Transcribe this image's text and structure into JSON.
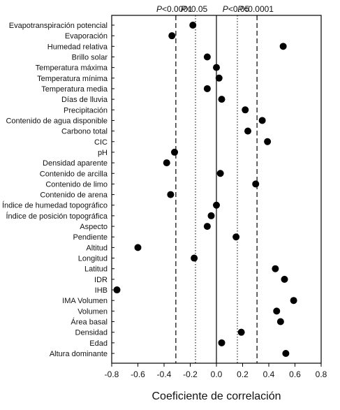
{
  "chart_data": {
    "type": "scatter",
    "orientation": "horizontal-dot",
    "xlabel": "Coeficiente de correlación",
    "ylabel": "",
    "xlim": [
      -0.8,
      0.8
    ],
    "xticks": [
      "-0.8",
      "-0.6",
      "-0.4",
      "-0.2",
      "0.0",
      "0.2",
      "0.4",
      "0.6",
      "0.8"
    ],
    "categories": [
      "Evapotranspiración potencial",
      "Evaporación",
      "Humedad relativa",
      "Brillo solar",
      "Temperatura máxima",
      "Temperatura mínima",
      "Temperatura media",
      "Días de lluvia",
      "Precipitación",
      "Contenido de agua disponible",
      "Carbono total",
      "CIC",
      "pH",
      "Densidad aparente",
      "Contenido de arcilla",
      "Contenido de limo",
      "Contenido de arena",
      "Índice de humedad topográfico",
      "Índice de posición topográfica",
      "Aspecto",
      "Pendiente",
      "Altitud",
      "Longitud",
      "Latitud",
      "IDR",
      "IHB",
      "IMA Volumen",
      "Volumen",
      "Área basal",
      "Densidad",
      "Edad",
      "Altura dominante"
    ],
    "values": [
      -0.18,
      -0.34,
      0.51,
      -0.07,
      0.0,
      0.02,
      -0.07,
      0.04,
      0.22,
      0.35,
      0.24,
      0.39,
      -0.32,
      -0.38,
      0.03,
      0.3,
      -0.35,
      0.0,
      -0.04,
      -0.07,
      0.15,
      -0.6,
      -0.17,
      0.45,
      0.52,
      -0.76,
      0.59,
      0.46,
      0.49,
      0.19,
      0.04,
      0.53
    ],
    "reference_lines": [
      {
        "value": -0.31,
        "style": "dashed",
        "label_prefix": "P",
        "label_suffix": "<0.0001"
      },
      {
        "value": -0.16,
        "style": "dotted",
        "label_prefix": "P",
        "label_suffix": "<0.05"
      },
      {
        "value": 0.0,
        "style": "solid"
      },
      {
        "value": 0.16,
        "style": "dotted",
        "label_prefix": "P",
        "label_suffix": "<0.05"
      },
      {
        "value": 0.31,
        "style": "dashed",
        "label_prefix": "P",
        "label_suffix": "<0.0001"
      }
    ],
    "grid": false,
    "marker_color": "#000000"
  }
}
